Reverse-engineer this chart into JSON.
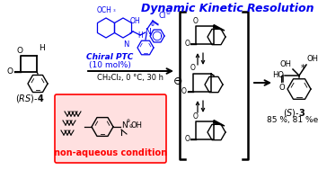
{
  "title": "Dynamic Kinetic Resolution",
  "title_color": "#0000EE",
  "bg_color": "#FFFFFF",
  "reactant_label": "(RS)-4",
  "product_label": "(S)-3",
  "product_yield": "85 %, 81 %ee",
  "catalyst_label": "Chiral PTC\n(10 mol%)",
  "conditions_label": "CH₂Cl₂, 0 °C, 30 h",
  "nonaqueous_label": "non-aqueous condition",
  "nonaqueous_color": "#FF0000",
  "nonaqueous_bg": "#FFE0E0",
  "catalyst_color": "#0000EE",
  "structure_color": "#000000"
}
